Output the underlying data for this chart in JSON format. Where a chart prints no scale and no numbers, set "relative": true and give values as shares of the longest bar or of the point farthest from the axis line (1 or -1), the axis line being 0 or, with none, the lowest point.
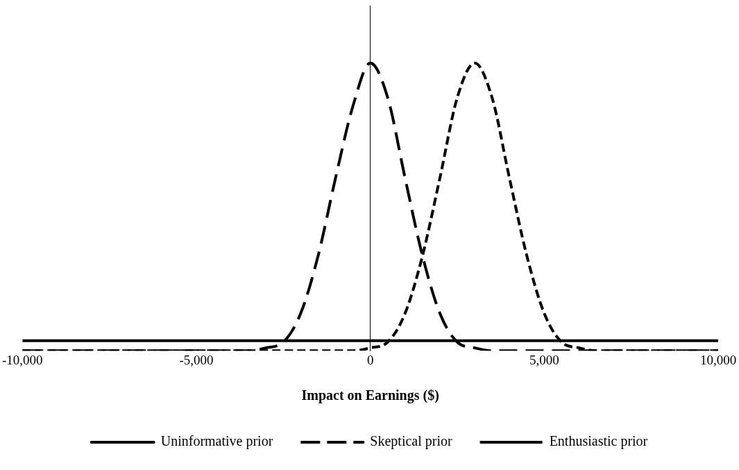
{
  "chart_data": {
    "type": "line",
    "relative": true,
    "xlabel": "Impact on Earnings ($)",
    "xlim": [
      -10000,
      10000
    ],
    "xticks": [
      {
        "value": -10000,
        "label": "-10,000"
      },
      {
        "value": -5000,
        "label": "-5,000"
      },
      0,
      {
        "value": 5000,
        "label": "5,000"
      },
      {
        "value": 10000,
        "label": "10,000"
      }
    ],
    "grid": false,
    "legend": "bottom",
    "marker": "none",
    "tick_labels": "x",
    "series": [
      {
        "name": "Uninformative prior",
        "color": "#000000",
        "line_style": "solid",
        "x": [
          -10000,
          0,
          10000
        ],
        "values": [
          0.035,
          0.035,
          0.035
        ]
      },
      {
        "name": "Skeptical prior",
        "color": "#000000",
        "line_style": "dashed",
        "x": [
          -10000,
          -4000,
          -3500,
          -3000,
          -2500,
          -2000,
          -1500,
          -1000,
          -500,
          0,
          500,
          1000,
          1500,
          2000,
          2500,
          3000,
          3500,
          4000,
          10000
        ],
        "values": [
          0,
          0,
          0,
          0.01,
          0.03,
          0.13,
          0.33,
          0.6,
          0.85,
          1,
          0.88,
          0.6,
          0.33,
          0.13,
          0.03,
          0.01,
          0,
          0,
          0
        ]
      },
      {
        "name": "Enthusiastic prior",
        "color": "#000000",
        "line_style": "dashed",
        "x": [
          -10000,
          -1000,
          -500,
          0,
          500,
          1000,
          1500,
          2000,
          2500,
          3000,
          3500,
          4000,
          4500,
          5000,
          5500,
          6000,
          6500,
          7000,
          10000
        ],
        "values": [
          0,
          0,
          0,
          0.01,
          0.03,
          0.13,
          0.33,
          0.6,
          0.88,
          1,
          0.88,
          0.6,
          0.33,
          0.13,
          0.03,
          0.01,
          0,
          0,
          0
        ]
      }
    ]
  }
}
